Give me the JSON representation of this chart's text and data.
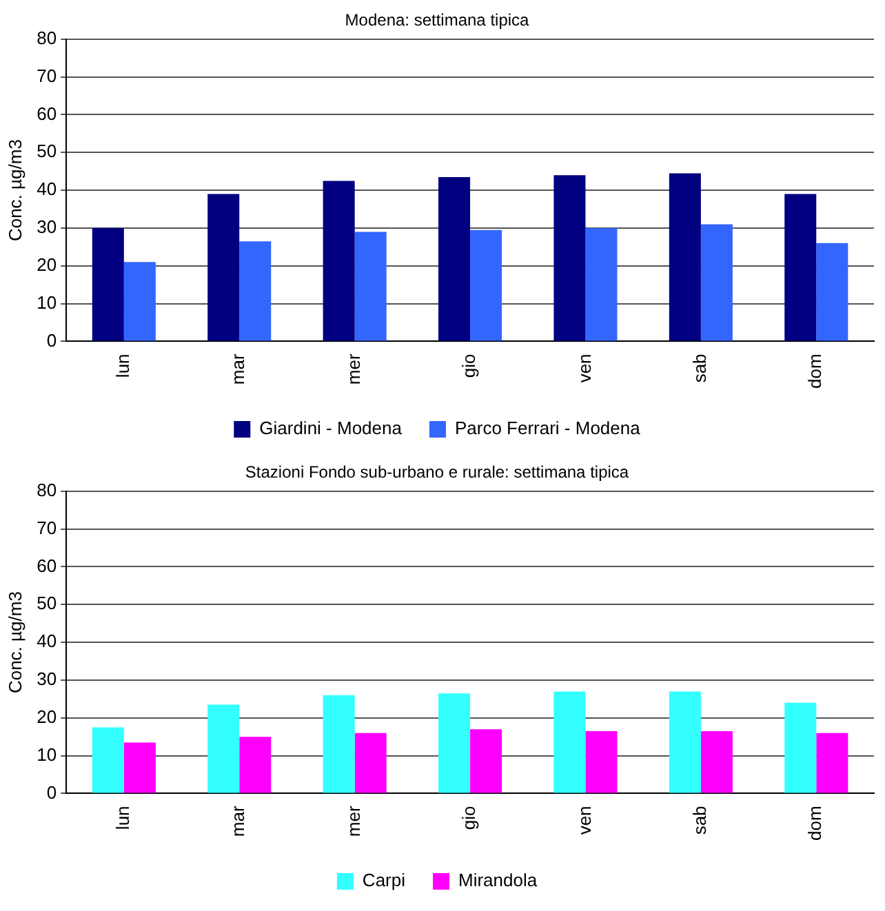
{
  "chart_data": [
    {
      "type": "bar",
      "title": "Modena: settimana tipica",
      "ylabel": "Conc. µg/m3",
      "categories": [
        "lun",
        "mar",
        "mer",
        "gio",
        "ven",
        "sab",
        "dom"
      ],
      "series": [
        {
          "name": "Giardini - Modena",
          "color": "#000080",
          "values": [
            30,
            39,
            42.5,
            43.5,
            44,
            44.5,
            39
          ]
        },
        {
          "name": "Parco Ferrari - Modena",
          "color": "#3366ff",
          "values": [
            21,
            26.5,
            29,
            29.5,
            30,
            31,
            26
          ]
        }
      ],
      "ylim": [
        0,
        80
      ],
      "yticks": [
        0,
        10,
        20,
        30,
        40,
        50,
        60,
        70,
        80
      ],
      "grid": "y",
      "legend": "bottom"
    },
    {
      "type": "bar",
      "title": "Stazioni Fondo sub-urbano e rurale: settimana tipica",
      "ylabel": "Conc. µg/m3",
      "categories": [
        "lun",
        "mar",
        "mer",
        "gio",
        "ven",
        "sab",
        "dom"
      ],
      "series": [
        {
          "name": "Carpi",
          "color": "#33ffff",
          "values": [
            17.5,
            23.5,
            26,
            26.5,
            27,
            27,
            24
          ]
        },
        {
          "name": "Mirandola",
          "color": "#ff00ff",
          "values": [
            13.5,
            15,
            16,
            17,
            16.5,
            16.5,
            16
          ]
        }
      ],
      "ylim": [
        0,
        80
      ],
      "yticks": [
        0,
        10,
        20,
        30,
        40,
        50,
        60,
        70,
        80
      ],
      "grid": "y",
      "legend": "bottom"
    }
  ]
}
